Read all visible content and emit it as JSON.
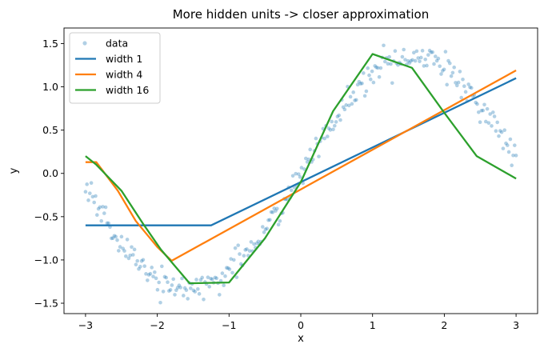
{
  "chart_data": {
    "type": "line",
    "title": "More hidden units -> closer approximation",
    "xlabel": "x",
    "ylabel": "y",
    "xlim": [
      -3.3,
      3.3
    ],
    "ylim": [
      -1.62,
      1.68
    ],
    "xticks": [
      -3,
      -2,
      -1,
      0,
      1,
      2,
      3
    ],
    "xtick_labels": [
      "−3",
      "−2",
      "−1",
      "0",
      "1",
      "2",
      "3"
    ],
    "yticks": [
      -1.5,
      -1.0,
      -0.5,
      0.0,
      0.5,
      1.0,
      1.5
    ],
    "ytick_labels": [
      "−1.5",
      "−1.0",
      "−0.5",
      "0.0",
      "0.5",
      "1.0",
      "1.5"
    ],
    "grid": false,
    "legend_position": "top-left",
    "scatter": {
      "name": "data",
      "color": "#1f77b4",
      "n_points": 300,
      "x_range": [
        -3,
        3
      ],
      "underlying_function": "sin(x) * 1.3 approx",
      "noise_std": 0.08
    },
    "series": [
      {
        "name": "width 1",
        "color": "#1f77b4",
        "x": [
          -3.0,
          -1.25,
          3.0
        ],
        "y": [
          -0.6,
          -0.6,
          1.1
        ]
      },
      {
        "name": "width 4",
        "color": "#ff7f0e",
        "x": [
          -3.0,
          -2.85,
          -2.55,
          -2.3,
          -2.0,
          -1.8,
          3.0
        ],
        "y": [
          0.13,
          0.13,
          -0.2,
          -0.55,
          -0.85,
          -1.01,
          1.19
        ]
      },
      {
        "name": "width 16",
        "color": "#2ca02c",
        "x": [
          -3.0,
          -2.85,
          -2.5,
          -2.2,
          -1.95,
          -1.55,
          -1.0,
          -0.5,
          0.0,
          0.45,
          1.0,
          1.55,
          2.0,
          2.45,
          3.0
        ],
        "y": [
          0.2,
          0.1,
          -0.2,
          -0.58,
          -0.88,
          -1.27,
          -1.26,
          -0.75,
          -0.1,
          0.72,
          1.38,
          1.22,
          0.7,
          0.2,
          -0.06
        ]
      }
    ]
  }
}
